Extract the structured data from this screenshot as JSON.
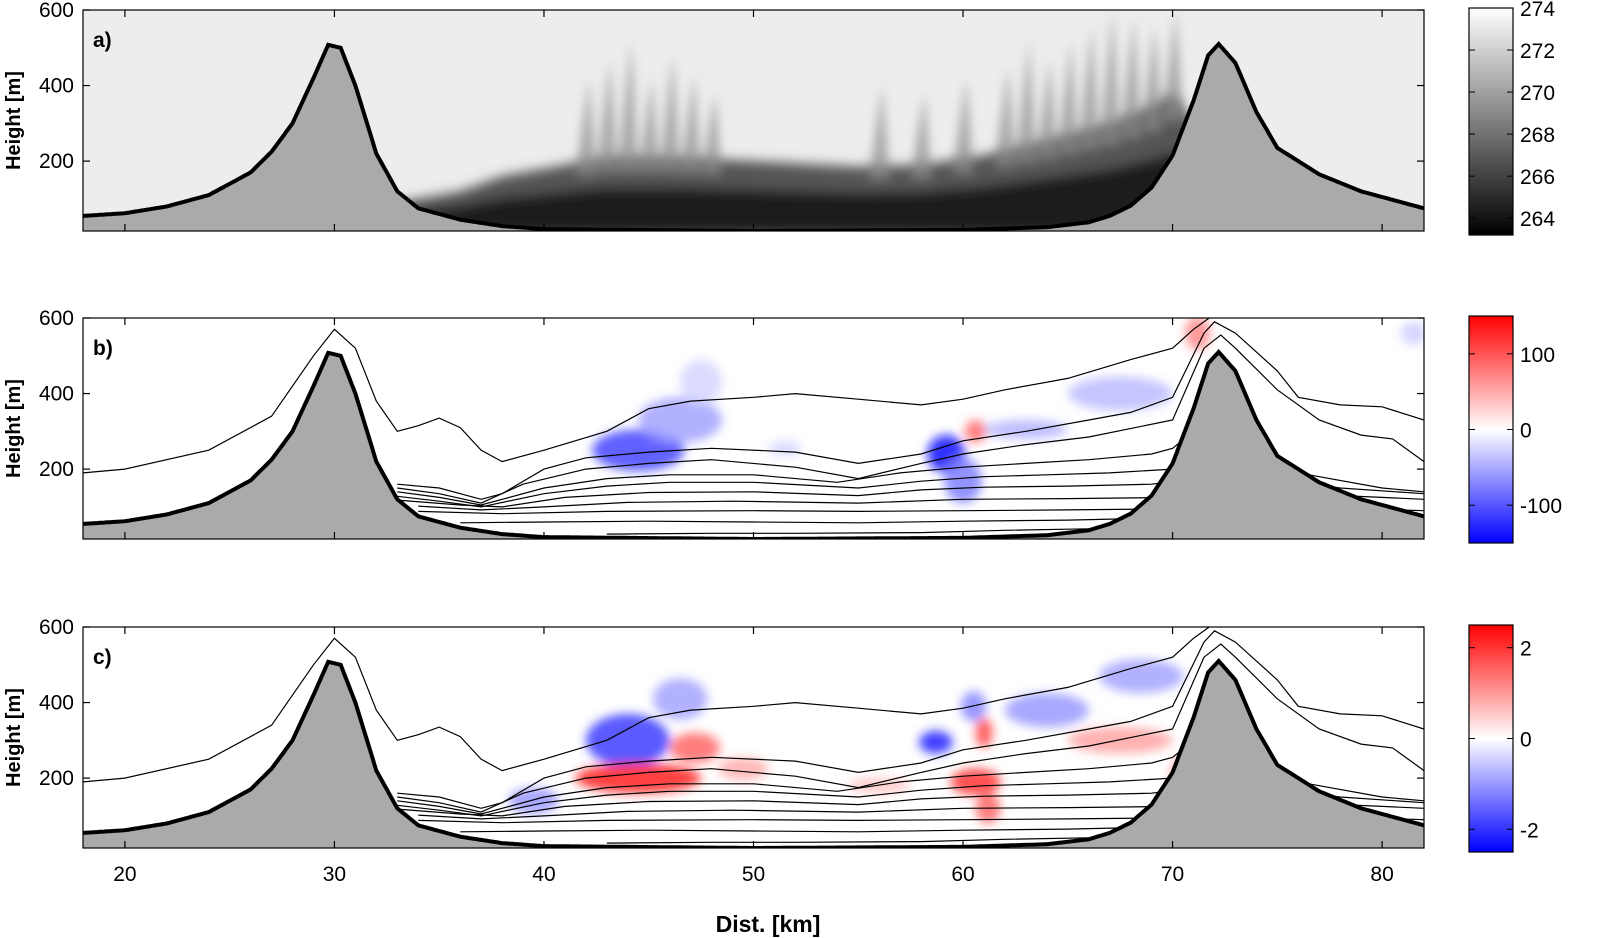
{
  "chart_data": {
    "type": "heatmap",
    "x_range": [
      18,
      82
    ],
    "x_ticks": [
      20,
      30,
      40,
      50,
      60,
      70,
      80
    ],
    "xlabel": "Dist. [km]",
    "panels": [
      {
        "label": "a)",
        "ylabel": "Height [m]",
        "ylim": [
          15,
          600
        ],
        "y_ticks": [
          200,
          400,
          600
        ],
        "colorbar": {
          "ticks": [
            264,
            266,
            268,
            270,
            272,
            274
          ],
          "range": [
            263.2,
            274
          ],
          "colormap": "grayscale",
          "low_color": "#000000",
          "high_color": "#ffffff"
        },
        "has_isolines": false
      },
      {
        "label": "b)",
        "ylabel": "Height [m]",
        "ylim": [
          15,
          600
        ],
        "y_ticks": [
          200,
          400,
          600
        ],
        "colorbar": {
          "ticks": [
            -100,
            0,
            100
          ],
          "range": [
            -150,
            150
          ],
          "colormap": "blue-white-red",
          "low_color": "#0000ff",
          "high_color": "#ff0000"
        },
        "has_isolines": true
      },
      {
        "label": "c)",
        "ylabel": "Height [m]",
        "ylim": [
          15,
          600
        ],
        "y_ticks": [
          200,
          400,
          600
        ],
        "colorbar": {
          "ticks": [
            -2,
            0,
            2
          ],
          "range": [
            -2.5,
            2.5
          ],
          "colormap": "blue-white-red",
          "low_color": "#0000ff",
          "high_color": "#ff0000"
        },
        "has_isolines": true
      }
    ],
    "terrain": {
      "fill_color": "#aaaaaa",
      "profile": [
        [
          18,
          55
        ],
        [
          20,
          62
        ],
        [
          22,
          80
        ],
        [
          24,
          110
        ],
        [
          26,
          170
        ],
        [
          27,
          225
        ],
        [
          28,
          300
        ],
        [
          29,
          420
        ],
        [
          29.7,
          508
        ],
        [
          30.3,
          500
        ],
        [
          31,
          400
        ],
        [
          32,
          220
        ],
        [
          33,
          120
        ],
        [
          34,
          75
        ],
        [
          36,
          45
        ],
        [
          38,
          28
        ],
        [
          40,
          20
        ],
        [
          50,
          15
        ],
        [
          60,
          18
        ],
        [
          64,
          25
        ],
        [
          66,
          38
        ],
        [
          67,
          55
        ],
        [
          68,
          82
        ],
        [
          69,
          130
        ],
        [
          70,
          215
        ],
        [
          71,
          360
        ],
        [
          71.7,
          480
        ],
        [
          72.2,
          510
        ],
        [
          73,
          460
        ],
        [
          74,
          330
        ],
        [
          75,
          235
        ],
        [
          77,
          165
        ],
        [
          79,
          120
        ],
        [
          81,
          90
        ],
        [
          82,
          75
        ]
      ]
    },
    "isolines": [
      [
        [
          18,
          190
        ],
        [
          20,
          200
        ],
        [
          24,
          250
        ],
        [
          27,
          340
        ],
        [
          29,
          500
        ],
        [
          30,
          570
        ],
        [
          31,
          520
        ],
        [
          32,
          380
        ],
        [
          33,
          300
        ],
        [
          34,
          315
        ],
        [
          35,
          335
        ],
        [
          36,
          310
        ],
        [
          37,
          250
        ],
        [
          38,
          220
        ],
        [
          40,
          250
        ],
        [
          43,
          300
        ],
        [
          45,
          360
        ],
        [
          47,
          380
        ],
        [
          50,
          390
        ],
        [
          52,
          400
        ],
        [
          55,
          385
        ],
        [
          58,
          370
        ],
        [
          60,
          385
        ],
        [
          62,
          410
        ],
        [
          65,
          440
        ],
        [
          68,
          490
        ],
        [
          70,
          520
        ],
        [
          71,
          570
        ],
        [
          72,
          610
        ]
      ],
      [
        [
          33,
          160
        ],
        [
          35,
          150
        ],
        [
          37,
          120
        ],
        [
          38,
          135
        ],
        [
          40,
          200
        ],
        [
          42,
          230
        ],
        [
          45,
          245
        ],
        [
          48,
          255
        ],
        [
          52,
          245
        ],
        [
          55,
          215
        ],
        [
          58,
          240
        ],
        [
          60,
          275
        ],
        [
          63,
          300
        ],
        [
          66,
          330
        ],
        [
          68,
          350
        ],
        [
          70,
          390
        ],
        [
          71.5,
          560
        ],
        [
          72,
          590
        ],
        [
          73,
          560
        ],
        [
          75,
          460
        ],
        [
          76,
          390
        ],
        [
          78,
          370
        ],
        [
          80,
          365
        ],
        [
          82,
          330
        ]
      ],
      [
        [
          33,
          150
        ],
        [
          35,
          135
        ],
        [
          37,
          110
        ],
        [
          39,
          160
        ],
        [
          42,
          200
        ],
        [
          45,
          215
        ],
        [
          48,
          225
        ],
        [
          52,
          205
        ],
        [
          55,
          175
        ],
        [
          58,
          215
        ],
        [
          60,
          240
        ],
        [
          63,
          265
        ],
        [
          66,
          285
        ],
        [
          70,
          330
        ],
        [
          71.5,
          520
        ],
        [
          72.3,
          555
        ],
        [
          73,
          520
        ],
        [
          75,
          410
        ],
        [
          77,
          330
        ],
        [
          79,
          290
        ],
        [
          80.5,
          280
        ],
        [
          82,
          220
        ]
      ],
      [
        [
          33,
          140
        ],
        [
          35,
          125
        ],
        [
          37,
          105
        ],
        [
          40,
          150
        ],
        [
          43,
          175
        ],
        [
          46,
          185
        ],
        [
          50,
          185
        ],
        [
          54,
          165
        ],
        [
          57,
          190
        ],
        [
          60,
          205
        ],
        [
          63,
          215
        ],
        [
          66,
          225
        ],
        [
          69,
          240
        ],
        [
          70,
          255
        ],
        [
          71,
          300
        ],
        [
          72,
          340
        ],
        [
          73,
          320
        ],
        [
          74,
          250
        ],
        [
          75,
          200
        ],
        [
          77,
          180
        ],
        [
          80,
          150
        ],
        [
          82,
          140
        ]
      ],
      [
        [
          33,
          128
        ],
        [
          35,
          115
        ],
        [
          37,
          100
        ],
        [
          40,
          135
        ],
        [
          43,
          155
        ],
        [
          46,
          165
        ],
        [
          50,
          165
        ],
        [
          55,
          150
        ],
        [
          58,
          168
        ],
        [
          61,
          180
        ],
        [
          64,
          185
        ],
        [
          67,
          190
        ],
        [
          70,
          200
        ],
        [
          71.5,
          230
        ],
        [
          73,
          200
        ],
        [
          75,
          170
        ],
        [
          78,
          150
        ],
        [
          82,
          135
        ]
      ],
      [
        [
          33,
          118
        ],
        [
          36,
          105
        ],
        [
          38,
          100
        ],
        [
          41,
          125
        ],
        [
          45,
          138
        ],
        [
          50,
          140
        ],
        [
          55,
          130
        ],
        [
          58,
          145
        ],
        [
          61,
          152
        ],
        [
          65,
          155
        ],
        [
          69,
          160
        ],
        [
          71,
          175
        ],
        [
          73,
          155
        ],
        [
          76,
          135
        ],
        [
          80,
          125
        ],
        [
          82,
          120
        ]
      ],
      [
        [
          34,
          102
        ],
        [
          37,
          92
        ],
        [
          40,
          100
        ],
        [
          44,
          112
        ],
        [
          49,
          115
        ],
        [
          55,
          110
        ],
        [
          60,
          120
        ],
        [
          65,
          122
        ],
        [
          70,
          125
        ],
        [
          72,
          128
        ],
        [
          75,
          110
        ],
        [
          79,
          95
        ],
        [
          82,
          90
        ]
      ],
      [
        [
          34,
          88
        ],
        [
          38,
          82
        ],
        [
          43,
          88
        ],
        [
          50,
          90
        ],
        [
          55,
          88
        ],
        [
          60,
          90
        ],
        [
          65,
          92
        ],
        [
          70,
          95
        ],
        [
          73,
          90
        ],
        [
          77,
          75
        ],
        [
          82,
          68
        ]
      ],
      [
        [
          36,
          58
        ],
        [
          40,
          60
        ],
        [
          45,
          62
        ],
        [
          50,
          60
        ],
        [
          55,
          58
        ],
        [
          60,
          62
        ],
        [
          65,
          65
        ],
        [
          69,
          70
        ]
      ],
      [
        [
          43,
          28
        ],
        [
          48,
          30
        ],
        [
          52,
          30
        ],
        [
          58,
          32
        ],
        [
          62,
          38
        ],
        [
          66,
          42
        ]
      ]
    ],
    "field_a": {
      "surface_level": 263.6,
      "cold_pool_top": [
        [
          33,
          90
        ],
        [
          36,
          120
        ],
        [
          38,
          160
        ],
        [
          40,
          180
        ],
        [
          43,
          210
        ],
        [
          46,
          210
        ],
        [
          50,
          200
        ],
        [
          55,
          185
        ],
        [
          58,
          190
        ],
        [
          61,
          215
        ],
        [
          64,
          255
        ],
        [
          67,
          300
        ],
        [
          69,
          345
        ],
        [
          70,
          380
        ],
        [
          71,
          300
        ]
      ],
      "plumes": [
        [
          42,
          420
        ],
        [
          43,
          470
        ],
        [
          44,
          520
        ],
        [
          45,
          420
        ],
        [
          46,
          480
        ],
        [
          47,
          430
        ],
        [
          48,
          380
        ],
        [
          56,
          400
        ],
        [
          58,
          380
        ],
        [
          60,
          420
        ],
        [
          62,
          450
        ],
        [
          63,
          520
        ],
        [
          64,
          470
        ],
        [
          65,
          520
        ],
        [
          66,
          560
        ],
        [
          67,
          600
        ],
        [
          68,
          580
        ],
        [
          69,
          560
        ],
        [
          70,
          600
        ]
      ]
    },
    "field_b": [
      {
        "x": 44.5,
        "y": 250,
        "rx": 2.2,
        "ry": 55,
        "value": -110
      },
      {
        "x": 46.5,
        "y": 330,
        "rx": 2.0,
        "ry": 60,
        "value": -55
      },
      {
        "x": 47.5,
        "y": 430,
        "rx": 1.0,
        "ry": 60,
        "value": -25
      },
      {
        "x": 59.2,
        "y": 240,
        "rx": 0.9,
        "ry": 50,
        "value": -140
      },
      {
        "x": 60.0,
        "y": 170,
        "rx": 0.9,
        "ry": 60,
        "value": -75
      },
      {
        "x": 60.6,
        "y": 300,
        "rx": 0.5,
        "ry": 30,
        "value": 90
      },
      {
        "x": 63,
        "y": 305,
        "rx": 2.0,
        "ry": 25,
        "value": -45
      },
      {
        "x": 67.5,
        "y": 400,
        "rx": 2.5,
        "ry": 45,
        "value": -40
      },
      {
        "x": 71.2,
        "y": 560,
        "rx": 0.6,
        "ry": 45,
        "value": 70
      },
      {
        "x": 81.5,
        "y": 560,
        "rx": 0.6,
        "ry": 30,
        "value": -30
      },
      {
        "x": 51.5,
        "y": 255,
        "rx": 0.8,
        "ry": 20,
        "value": -25
      }
    ],
    "field_c": [
      {
        "x": 39.5,
        "y": 140,
        "rx": 1.2,
        "ry": 35,
        "value": -1.0
      },
      {
        "x": 44,
        "y": 300,
        "rx": 2.0,
        "ry": 70,
        "value": -1.9
      },
      {
        "x": 46.5,
        "y": 410,
        "rx": 1.3,
        "ry": 55,
        "value": -0.9
      },
      {
        "x": 44.5,
        "y": 200,
        "rx": 3.0,
        "ry": 40,
        "value": 2.2
      },
      {
        "x": 47.2,
        "y": 280,
        "rx": 1.2,
        "ry": 40,
        "value": 1.5
      },
      {
        "x": 49.5,
        "y": 225,
        "rx": 1.2,
        "ry": 30,
        "value": 0.8
      },
      {
        "x": 58.7,
        "y": 295,
        "rx": 0.8,
        "ry": 30,
        "value": -2.2
      },
      {
        "x": 60.5,
        "y": 390,
        "rx": 0.6,
        "ry": 40,
        "value": -1.2
      },
      {
        "x": 60.6,
        "y": 190,
        "rx": 1.2,
        "ry": 35,
        "value": 2.0
      },
      {
        "x": 61.2,
        "y": 120,
        "rx": 0.6,
        "ry": 40,
        "value": 1.5
      },
      {
        "x": 61.0,
        "y": 320,
        "rx": 0.4,
        "ry": 40,
        "value": 1.8
      },
      {
        "x": 64,
        "y": 380,
        "rx": 2.0,
        "ry": 45,
        "value": -1.0
      },
      {
        "x": 67.5,
        "y": 300,
        "rx": 2.5,
        "ry": 35,
        "value": 0.9
      },
      {
        "x": 68.5,
        "y": 470,
        "rx": 2.0,
        "ry": 45,
        "value": -0.9
      },
      {
        "x": 70.5,
        "y": 200,
        "rx": 0.6,
        "ry": 60,
        "value": 1.0
      },
      {
        "x": 56,
        "y": 180,
        "rx": 1.5,
        "ry": 20,
        "value": 0.6
      }
    ]
  }
}
